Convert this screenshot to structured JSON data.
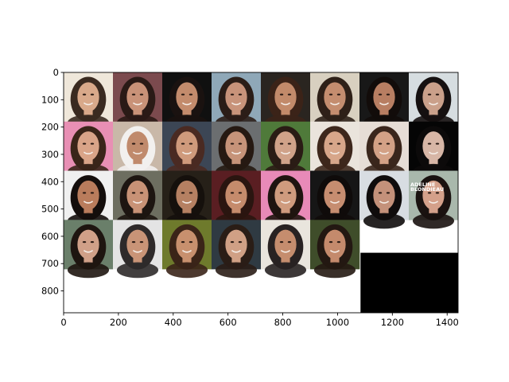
{
  "figure": {
    "description_type": "image grid plotted on matplotlib axes",
    "x_axis": {
      "ticks": [
        0,
        200,
        400,
        600,
        800,
        1000,
        1200,
        1400
      ],
      "range": [
        0,
        1440
      ]
    },
    "y_axis": {
      "ticks": [
        0,
        100,
        200,
        300,
        400,
        500,
        600,
        700,
        800
      ],
      "range": [
        0,
        880
      ],
      "inverted": true
    },
    "grid": {
      "rows": 4,
      "cols": 8,
      "filled_tiles": 30,
      "tile_size_data_units": 180
    },
    "tile_watermark": {
      "line1": "ADELINE",
      "line2": "BLONDIEAU"
    },
    "tiles": [
      {
        "bg": "#efe7da",
        "skin": "#d9a98a",
        "hair": "#3a2a20"
      },
      {
        "bg": "#7b4a4e",
        "skin": "#c99278",
        "hair": "#2a1a16"
      },
      {
        "bg": "#101010",
        "skin": "#c38b6c",
        "hair": "#1a1210"
      },
      {
        "bg": "#8fa8b8",
        "skin": "#c8937a",
        "hair": "#2b1d17"
      },
      {
        "bg": "#2a2520",
        "skin": "#c28a6a",
        "hair": "#3b2318"
      },
      {
        "bg": "#d8d0c0",
        "skin": "#c48d6f",
        "hair": "#2e2018"
      },
      {
        "bg": "#181818",
        "skin": "#b87e62",
        "hair": "#120c0a"
      },
      {
        "bg": "#d6dde0",
        "skin": "#caa08a",
        "hair": "#151010"
      },
      {
        "bg": "#e88fb4",
        "skin": "#d9a488",
        "hair": "#3a2519"
      },
      {
        "bg": "#c9b8a8",
        "skin": "#c08a6c",
        "hair": "#f2f0ee"
      },
      {
        "bg": "#3c4655",
        "skin": "#cf9a7c",
        "hair": "#4a2a22"
      },
      {
        "bg": "#6b6e70",
        "skin": "#c69379",
        "hair": "#261912"
      },
      {
        "bg": "#4f7a3a",
        "skin": "#d0a289",
        "hair": "#2a1c15"
      },
      {
        "bg": "#eae4dc",
        "skin": "#d7a68a",
        "hair": "#3d271c"
      },
      {
        "bg": "#e6ddd6",
        "skin": "#d3a186",
        "hair": "#3a261c"
      },
      {
        "bg": "#050505",
        "skin": "#d7b6a6",
        "hair": "#0c0a0a"
      },
      {
        "bg": "#f0f0f0",
        "skin": "#b97c5c",
        "hair": "#140e0c"
      },
      {
        "bg": "#6d6e60",
        "skin": "#c89276",
        "hair": "#1d1511"
      },
      {
        "bg": "#262018",
        "skin": "#b58062",
        "hair": "#15100c"
      },
      {
        "bg": "#5a1e22",
        "skin": "#c58b6c",
        "hair": "#2a1510"
      },
      {
        "bg": "#e88ab8",
        "skin": "#cf9b7e",
        "hair": "#1f1410"
      },
      {
        "bg": "#161616",
        "skin": "#c68d70",
        "hair": "#0f0b0a"
      },
      {
        "bg": "#d8dde2",
        "skin": "#c4917a",
        "hair": "#0f0c0c"
      },
      {
        "bg": "#a9b8ac",
        "skin": "#d4a08a",
        "hair": "#1a1210"
      },
      {
        "bg": "#6a7f6a",
        "skin": "#d0a088",
        "hair": "#1e1510"
      },
      {
        "bg": "#e4e4e4",
        "skin": "#c99477",
        "hair": "#2e2a2a"
      },
      {
        "bg": "#6e7a2c",
        "skin": "#c8906e",
        "hair": "#3a2418"
      },
      {
        "bg": "#2f3a42",
        "skin": "#d0a085",
        "hair": "#2a1d16"
      },
      {
        "bg": "#e9e5dd",
        "skin": "#c58d6e",
        "hair": "#282222"
      },
      {
        "bg": "#3f4d2a",
        "skin": "#c48a6c",
        "hair": "#231812"
      }
    ]
  }
}
